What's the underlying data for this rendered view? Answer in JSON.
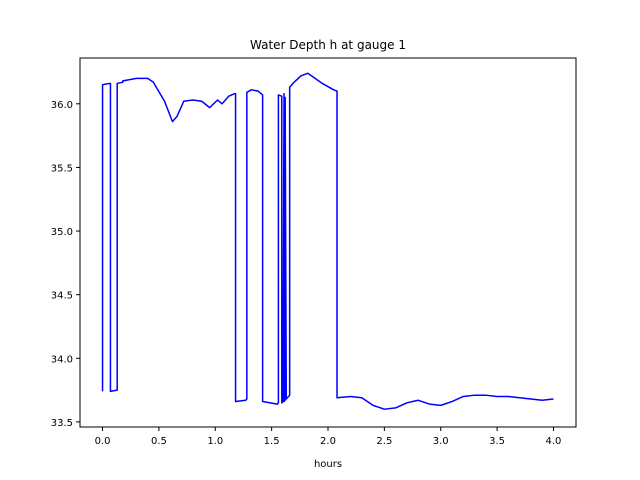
{
  "chart_data": {
    "type": "line",
    "title": "Water Depth h at gauge 1",
    "xlabel": "hours",
    "ylabel": "",
    "xlim": [
      -0.2,
      4.2
    ],
    "ylim": [
      33.46,
      36.36
    ],
    "x_ticks": [
      0.0,
      0.5,
      1.0,
      1.5,
      2.0,
      2.5,
      3.0,
      3.5,
      4.0
    ],
    "x_tick_labels": [
      "0.0",
      "0.5",
      "1.0",
      "1.5",
      "2.0",
      "2.5",
      "3.0",
      "3.5",
      "4.0"
    ],
    "y_ticks": [
      33.5,
      34.0,
      34.5,
      35.0,
      35.5,
      36.0
    ],
    "y_tick_labels": [
      "33.5",
      "34.0",
      "34.5",
      "35.0",
      "35.5",
      "36.0"
    ],
    "grid": false,
    "series": [
      {
        "color": "#0000ff",
        "x": [
          0.0,
          0.0,
          0.06,
          0.07,
          0.07,
          0.13,
          0.13,
          0.18,
          0.18,
          0.3,
          0.4,
          0.45,
          0.55,
          0.62,
          0.66,
          0.72,
          0.8,
          0.88,
          0.95,
          1.02,
          1.06,
          1.12,
          1.17,
          1.18,
          1.18,
          1.27,
          1.28,
          1.28,
          1.32,
          1.38,
          1.42,
          1.42,
          1.55,
          1.56,
          1.56,
          1.59,
          1.59,
          1.6,
          1.61,
          1.61,
          1.62,
          1.62,
          1.63,
          1.63,
          1.66,
          1.66,
          1.7,
          1.76,
          1.82,
          1.87,
          1.95,
          2.05,
          2.08,
          2.08,
          2.2,
          2.3,
          2.4,
          2.5,
          2.6,
          2.7,
          2.8,
          2.9,
          3.0,
          3.1,
          3.2,
          3.3,
          3.4,
          3.5,
          3.6,
          3.7,
          3.8,
          3.9,
          4.0
        ],
        "y": [
          33.74,
          36.15,
          36.16,
          36.16,
          33.74,
          33.75,
          36.16,
          36.17,
          36.18,
          36.2,
          36.2,
          36.17,
          36.02,
          35.86,
          35.9,
          36.02,
          36.03,
          36.02,
          35.97,
          36.03,
          36.0,
          36.06,
          36.08,
          36.08,
          33.66,
          33.67,
          33.68,
          36.09,
          36.11,
          36.1,
          36.07,
          33.66,
          33.64,
          33.65,
          36.07,
          36.06,
          33.65,
          33.66,
          36.08,
          33.66,
          33.67,
          36.05,
          33.68,
          33.68,
          33.71,
          36.13,
          36.17,
          36.22,
          36.24,
          36.21,
          36.16,
          36.11,
          36.1,
          33.69,
          33.7,
          33.69,
          33.63,
          33.6,
          33.61,
          33.65,
          33.67,
          33.64,
          33.63,
          33.66,
          33.7,
          33.71,
          33.71,
          33.7,
          33.7,
          33.69,
          33.68,
          33.67,
          33.68
        ]
      }
    ]
  }
}
